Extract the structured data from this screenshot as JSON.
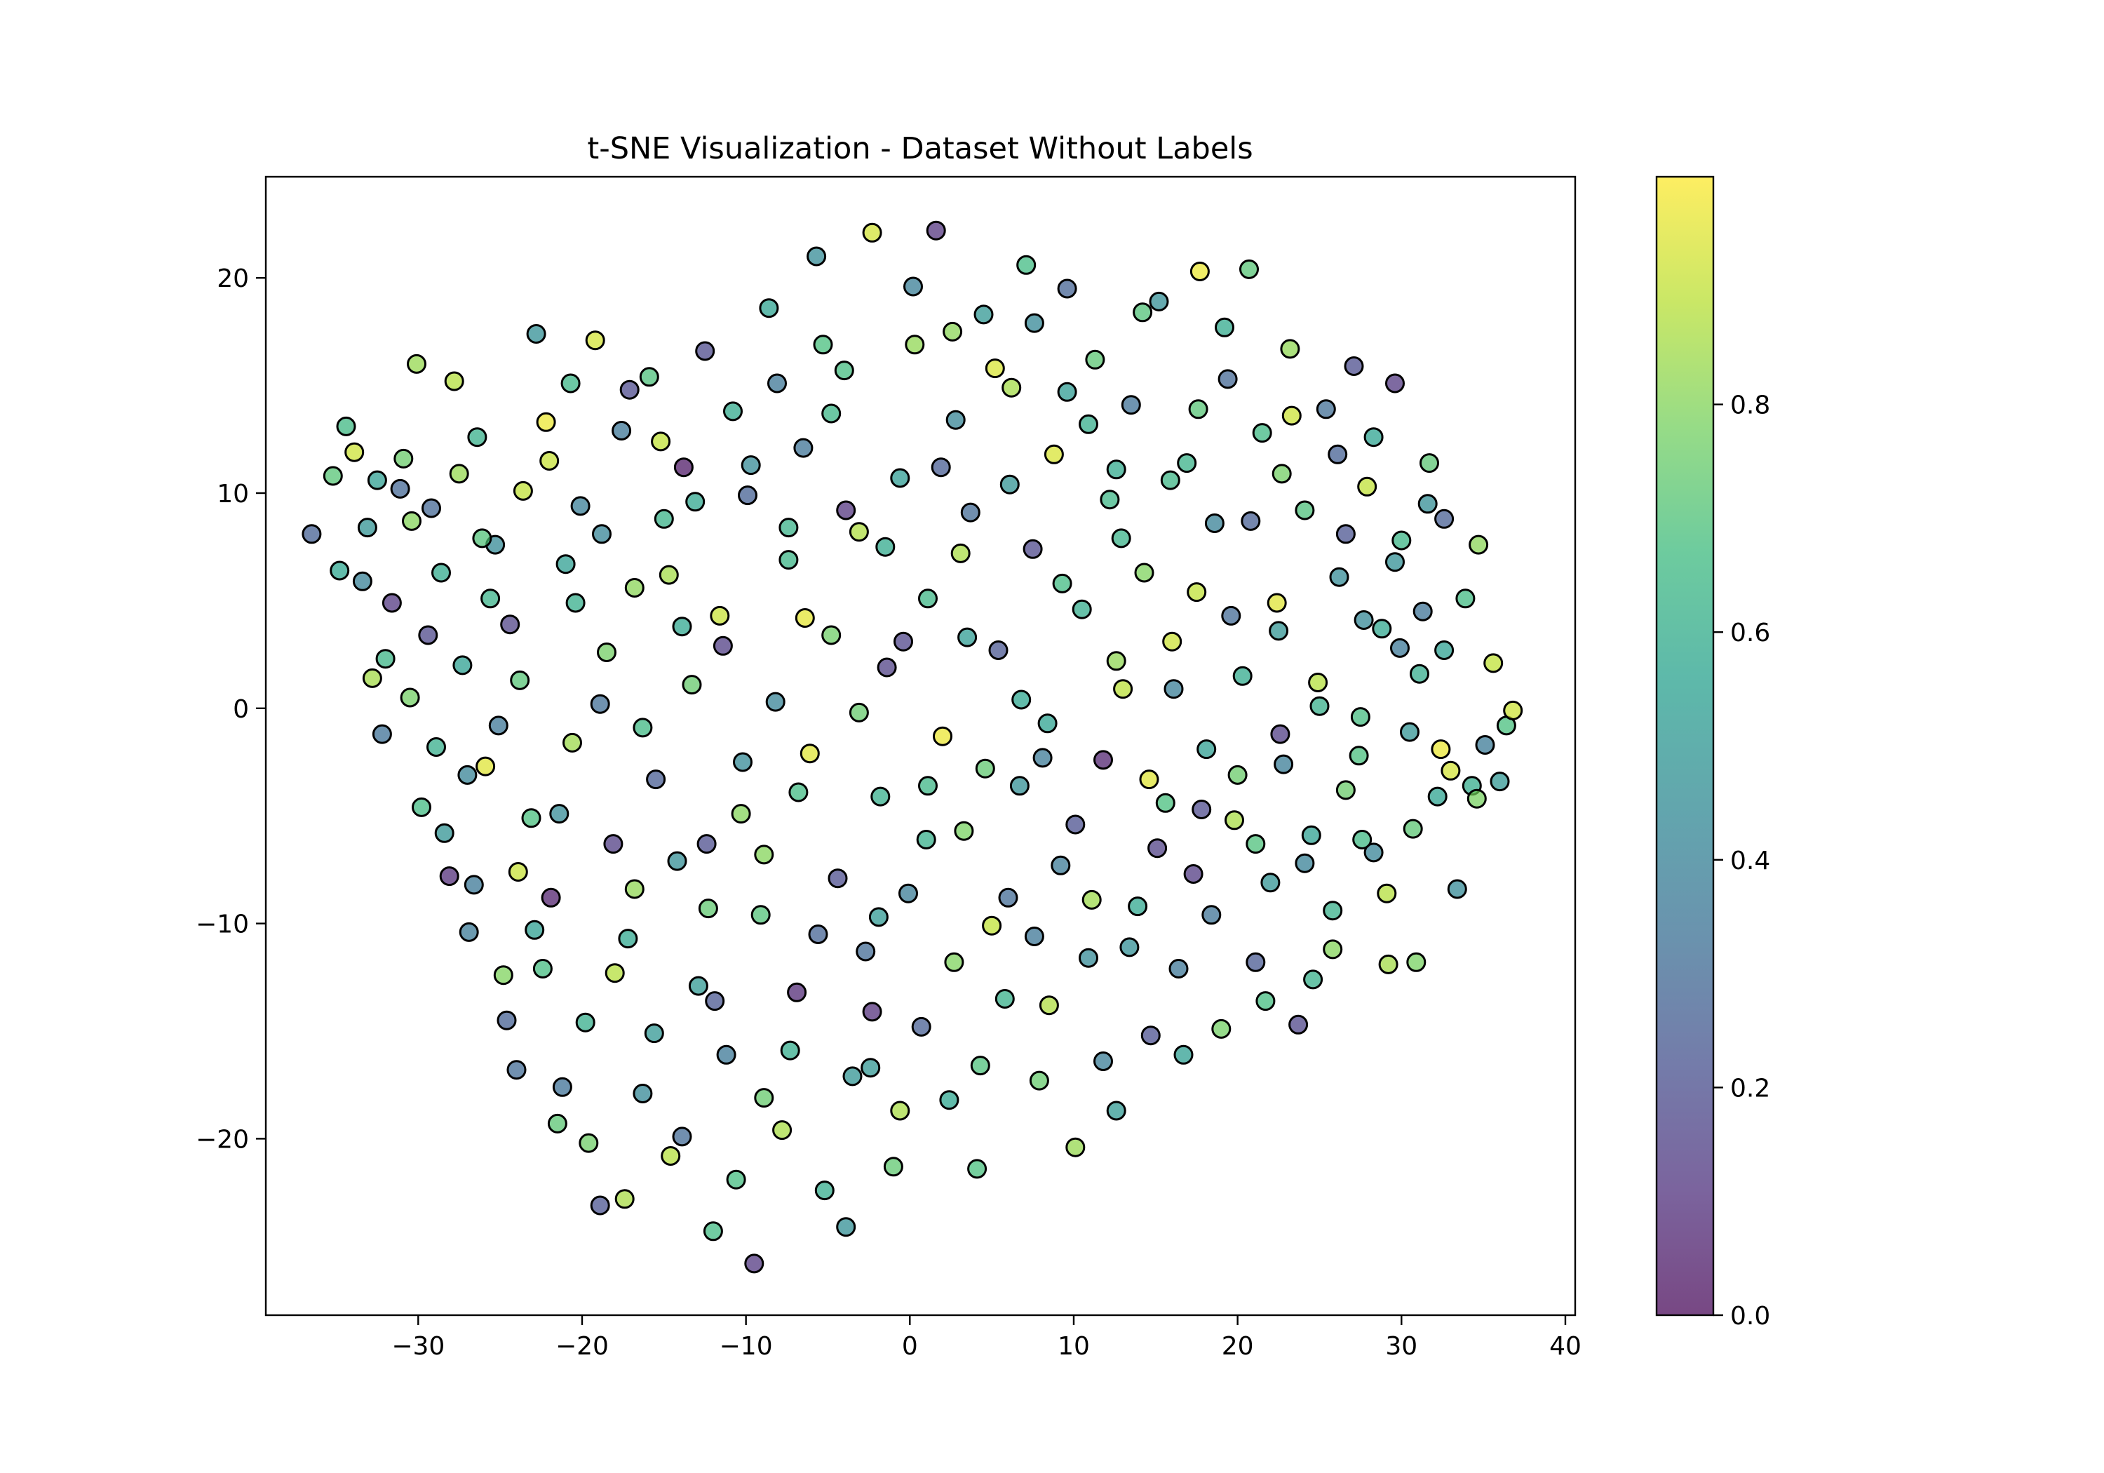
{
  "chart_data": {
    "type": "scatter",
    "title": "t-SNE Visualization - Dataset Without Labels",
    "xlabel": "",
    "ylabel": "",
    "xlim": [
      -39.3,
      40.6
    ],
    "ylim": [
      -28.2,
      24.7
    ],
    "xticks": [
      -30,
      -20,
      -10,
      0,
      10,
      20,
      30,
      40
    ],
    "yticks": [
      -20,
      -10,
      0,
      10,
      20
    ],
    "xtick_labels": [
      "−30",
      "−20",
      "−10",
      "0",
      "10",
      "20",
      "30",
      "40"
    ],
    "ytick_labels": [
      "−20",
      "−10",
      "0",
      "10",
      "20"
    ],
    "grid": false,
    "legend": "none",
    "colormap": "viridis",
    "marker_alpha": 0.7,
    "marker_edge_color": "#000000",
    "colorbar": {
      "range": [
        0.0,
        1.0
      ],
      "ticks": [
        0.0,
        0.2,
        0.4,
        0.6,
        0.8
      ],
      "tick_labels": [
        "0.0",
        "0.2",
        "0.4",
        "0.6",
        "0.8"
      ]
    },
    "colors": {
      "viridis_stops": [
        "#440154",
        "#482878",
        "#3e4989",
        "#31688e",
        "#26828e",
        "#1f9e89",
        "#35b779",
        "#6ece58",
        "#b5de2b",
        "#fde725"
      ]
    },
    "points": [
      [
        -36.5,
        8.1,
        0.27
      ],
      [
        -35.2,
        10.8,
        0.71
      ],
      [
        -34.4,
        13.1,
        0.65
      ],
      [
        -33.9,
        11.9,
        0.92
      ],
      [
        -33.1,
        8.4,
        0.48
      ],
      [
        -32.8,
        1.4,
        0.85
      ],
      [
        -32.2,
        -1.2,
        0.33
      ],
      [
        -31.6,
        4.9,
        0.12
      ],
      [
        -30.9,
        11.6,
        0.75
      ],
      [
        -30.1,
        16.0,
        0.83
      ],
      [
        -29.8,
        -4.6,
        0.66
      ],
      [
        -29.2,
        9.3,
        0.29
      ],
      [
        -28.6,
        6.3,
        0.58
      ],
      [
        -28.1,
        -7.8,
        0.09
      ],
      [
        -27.8,
        15.2,
        0.88
      ],
      [
        -27.3,
        2.0,
        0.54
      ],
      [
        -26.9,
        -10.4,
        0.37
      ],
      [
        -26.4,
        12.6,
        0.61
      ],
      [
        -25.9,
        -2.7,
        0.95
      ],
      [
        -25.3,
        7.6,
        0.44
      ],
      [
        -24.8,
        -12.4,
        0.79
      ],
      [
        -24.4,
        3.9,
        0.16
      ],
      [
        -24.0,
        -16.8,
        0.31
      ],
      [
        -23.6,
        10.1,
        0.9
      ],
      [
        -23.1,
        -5.1,
        0.68
      ],
      [
        -22.8,
        17.4,
        0.47
      ],
      [
        -22.2,
        13.3,
        0.97
      ],
      [
        -21.9,
        -8.8,
        0.05
      ],
      [
        -21.5,
        -19.3,
        0.72
      ],
      [
        -21.0,
        6.7,
        0.53
      ],
      [
        -20.6,
        -1.6,
        0.84
      ],
      [
        -20.1,
        9.4,
        0.39
      ],
      [
        -19.8,
        -14.6,
        0.6
      ],
      [
        -19.2,
        17.1,
        0.93
      ],
      [
        -18.9,
        -23.1,
        0.22
      ],
      [
        -18.5,
        2.6,
        0.77
      ],
      [
        -18.1,
        -6.3,
        0.14
      ],
      [
        -17.6,
        12.9,
        0.35
      ],
      [
        -17.2,
        -10.7,
        0.57
      ],
      [
        -16.8,
        5.6,
        0.81
      ],
      [
        -16.3,
        -17.9,
        0.43
      ],
      [
        -15.9,
        15.4,
        0.69
      ],
      [
        -15.5,
        -3.3,
        0.25
      ],
      [
        -15.0,
        8.8,
        0.62
      ],
      [
        -14.6,
        -20.8,
        0.88
      ],
      [
        -14.2,
        -7.1,
        0.46
      ],
      [
        -13.8,
        11.2,
        0.03
      ],
      [
        -13.3,
        1.1,
        0.74
      ],
      [
        -12.9,
        -12.9,
        0.51
      ],
      [
        -12.5,
        16.6,
        0.19
      ],
      [
        -12.0,
        -24.3,
        0.66
      ],
      [
        -11.6,
        4.3,
        0.91
      ],
      [
        -11.2,
        -16.1,
        0.36
      ],
      [
        -10.8,
        13.8,
        0.58
      ],
      [
        -10.3,
        -4.9,
        0.8
      ],
      [
        -9.9,
        9.9,
        0.27
      ],
      [
        -9.5,
        -25.8,
        0.12
      ],
      [
        -9.1,
        -9.6,
        0.7
      ],
      [
        -8.6,
        18.6,
        0.55
      ],
      [
        -8.2,
        0.3,
        0.41
      ],
      [
        -7.8,
        -19.6,
        0.86
      ],
      [
        -7.4,
        6.9,
        0.63
      ],
      [
        -6.9,
        -13.2,
        0.08
      ],
      [
        -6.5,
        12.1,
        0.34
      ],
      [
        -6.1,
        -2.1,
        0.95
      ],
      [
        -5.7,
        21.0,
        0.45
      ],
      [
        -5.2,
        -22.4,
        0.59
      ],
      [
        -4.8,
        3.4,
        0.76
      ],
      [
        -4.4,
        -7.9,
        0.2
      ],
      [
        -4.0,
        15.7,
        0.67
      ],
      [
        -3.5,
        -17.1,
        0.49
      ],
      [
        -3.1,
        8.2,
        0.87
      ],
      [
        -2.7,
        -11.3,
        0.31
      ],
      [
        -2.3,
        22.1,
        0.93
      ],
      [
        -1.8,
        -4.1,
        0.6
      ],
      [
        -1.4,
        1.9,
        0.15
      ],
      [
        -1.0,
        -21.3,
        0.73
      ],
      [
        -0.6,
        10.7,
        0.52
      ],
      [
        -0.1,
        -8.6,
        0.38
      ],
      [
        0.3,
        16.9,
        0.82
      ],
      [
        0.7,
        -14.8,
        0.26
      ],
      [
        1.1,
        5.1,
        0.64
      ],
      [
        1.6,
        22.2,
        0.11
      ],
      [
        2.0,
        -1.3,
        0.97
      ],
      [
        2.4,
        -18.2,
        0.56
      ],
      [
        2.8,
        13.4,
        0.42
      ],
      [
        3.3,
        -5.7,
        0.78
      ],
      [
        3.7,
        9.1,
        0.3
      ],
      [
        4.1,
        -21.4,
        0.68
      ],
      [
        4.5,
        18.3,
        0.5
      ],
      [
        5.0,
        -10.1,
        0.9
      ],
      [
        5.4,
        2.7,
        0.23
      ],
      [
        5.8,
        -13.5,
        0.61
      ],
      [
        6.2,
        14.9,
        0.85
      ],
      [
        6.7,
        -3.6,
        0.47
      ],
      [
        7.1,
        20.6,
        0.66
      ],
      [
        7.5,
        7.4,
        0.18
      ],
      [
        7.9,
        -17.3,
        0.74
      ],
      [
        8.4,
        -0.7,
        0.55
      ],
      [
        8.8,
        11.8,
        0.94
      ],
      [
        9.2,
        -7.3,
        0.37
      ],
      [
        9.6,
        19.5,
        0.28
      ],
      [
        10.1,
        -20.4,
        0.83
      ],
      [
        10.5,
        4.6,
        0.59
      ],
      [
        10.9,
        -11.6,
        0.44
      ],
      [
        11.3,
        16.2,
        0.72
      ],
      [
        11.8,
        -2.4,
        0.06
      ],
      [
        12.2,
        9.7,
        0.64
      ],
      [
        12.6,
        -18.7,
        0.51
      ],
      [
        13.0,
        0.9,
        0.89
      ],
      [
        13.5,
        14.1,
        0.33
      ],
      [
        13.9,
        -9.2,
        0.57
      ],
      [
        14.3,
        6.3,
        0.79
      ],
      [
        14.7,
        -15.2,
        0.21
      ],
      [
        15.2,
        18.9,
        0.46
      ],
      [
        15.6,
        -4.4,
        0.68
      ],
      [
        16.0,
        3.1,
        0.92
      ],
      [
        16.4,
        -12.1,
        0.35
      ],
      [
        16.9,
        11.4,
        0.62
      ],
      [
        17.3,
        -7.7,
        0.13
      ],
      [
        17.7,
        20.3,
        0.97
      ],
      [
        18.1,
        -1.9,
        0.53
      ],
      [
        18.6,
        8.6,
        0.4
      ],
      [
        19.0,
        -14.9,
        0.77
      ],
      [
        19.4,
        15.3,
        0.29
      ],
      [
        19.8,
        -5.2,
        0.86
      ],
      [
        20.3,
        1.5,
        0.58
      ],
      [
        20.7,
        20.4,
        0.71
      ],
      [
        21.1,
        -11.8,
        0.24
      ],
      [
        21.5,
        12.8,
        0.65
      ],
      [
        22.0,
        -8.1,
        0.48
      ],
      [
        22.4,
        4.9,
        0.95
      ],
      [
        22.8,
        -2.6,
        0.38
      ],
      [
        23.2,
        16.7,
        0.82
      ],
      [
        23.7,
        -14.7,
        0.17
      ],
      [
        24.1,
        9.2,
        0.69
      ],
      [
        24.5,
        -5.9,
        0.54
      ],
      [
        24.9,
        1.2,
        0.88
      ],
      [
        25.4,
        13.9,
        0.32
      ],
      [
        25.8,
        -9.4,
        0.61
      ],
      [
        26.2,
        6.1,
        0.45
      ],
      [
        26.6,
        -3.8,
        0.75
      ],
      [
        27.1,
        15.9,
        0.2
      ],
      [
        27.5,
        -0.4,
        0.67
      ],
      [
        27.9,
        10.3,
        0.9
      ],
      [
        28.3,
        -6.7,
        0.41
      ],
      [
        28.8,
        3.7,
        0.57
      ],
      [
        29.2,
        -11.9,
        0.85
      ],
      [
        29.6,
        15.1,
        0.12
      ],
      [
        30.0,
        7.8,
        0.63
      ],
      [
        30.5,
        -1.1,
        0.49
      ],
      [
        30.9,
        -11.8,
        0.78
      ],
      [
        31.3,
        4.5,
        0.34
      ],
      [
        31.7,
        11.4,
        0.72
      ],
      [
        32.2,
        -4.1,
        0.55
      ],
      [
        32.6,
        8.8,
        0.26
      ],
      [
        33.0,
        -2.9,
        0.93
      ],
      [
        33.4,
        -8.4,
        0.44
      ],
      [
        33.9,
        5.1,
        0.66
      ],
      [
        34.3,
        -3.6,
        0.59
      ],
      [
        34.7,
        7.6,
        0.81
      ],
      [
        35.1,
        -1.7,
        0.37
      ],
      [
        35.6,
        2.1,
        0.9
      ],
      [
        36.0,
        -3.4,
        0.5
      ],
      [
        36.4,
        -0.8,
        0.68
      ],
      [
        36.8,
        -0.1,
        0.92
      ],
      [
        -34.8,
        6.4,
        0.56
      ],
      [
        -33.4,
        5.9,
        0.4
      ],
      [
        -32.0,
        2.3,
        0.63
      ],
      [
        -30.5,
        0.5,
        0.77
      ],
      [
        -29.4,
        3.4,
        0.18
      ],
      [
        -28.4,
        -5.8,
        0.48
      ],
      [
        -27.5,
        10.9,
        0.83
      ],
      [
        -26.6,
        -8.2,
        0.36
      ],
      [
        -25.6,
        5.1,
        0.62
      ],
      [
        -24.6,
        -14.5,
        0.27
      ],
      [
        -23.8,
        1.3,
        0.71
      ],
      [
        -22.9,
        -10.3,
        0.54
      ],
      [
        -22.0,
        11.5,
        0.91
      ],
      [
        -21.2,
        -17.6,
        0.33
      ],
      [
        -20.4,
        4.9,
        0.6
      ],
      [
        -19.6,
        -20.2,
        0.76
      ],
      [
        -18.8,
        8.1,
        0.42
      ],
      [
        -18.0,
        -12.3,
        0.88
      ],
      [
        -17.1,
        14.8,
        0.19
      ],
      [
        -16.3,
        -0.9,
        0.65
      ],
      [
        -15.6,
        -15.1,
        0.5
      ],
      [
        -14.7,
        6.2,
        0.85
      ],
      [
        -13.9,
        -19.9,
        0.3
      ],
      [
        -13.1,
        9.6,
        0.57
      ],
      [
        -12.3,
        -9.3,
        0.73
      ],
      [
        -11.4,
        2.9,
        0.14
      ],
      [
        -10.6,
        -21.9,
        0.67
      ],
      [
        -9.7,
        11.3,
        0.44
      ],
      [
        -8.9,
        -6.8,
        0.8
      ],
      [
        -8.1,
        15.1,
        0.35
      ],
      [
        -7.3,
        -15.9,
        0.59
      ],
      [
        -6.4,
        4.2,
        0.96
      ],
      [
        -5.6,
        -10.5,
        0.28
      ],
      [
        -4.8,
        13.7,
        0.63
      ],
      [
        -3.9,
        -24.1,
        0.47
      ],
      [
        -3.1,
        -0.2,
        0.74
      ],
      [
        -2.3,
        -14.1,
        0.1
      ],
      [
        -1.5,
        7.5,
        0.58
      ],
      [
        -0.6,
        -18.7,
        0.86
      ],
      [
        0.2,
        19.6,
        0.39
      ],
      [
        1.0,
        -6.1,
        0.61
      ],
      [
        1.9,
        11.2,
        0.25
      ],
      [
        2.7,
        -11.8,
        0.79
      ],
      [
        3.5,
        3.3,
        0.52
      ],
      [
        4.3,
        -16.6,
        0.69
      ],
      [
        5.2,
        15.8,
        0.94
      ],
      [
        6.0,
        -8.8,
        0.31
      ],
      [
        6.8,
        0.4,
        0.56
      ],
      [
        7.6,
        17.9,
        0.43
      ],
      [
        8.5,
        -13.8,
        0.87
      ],
      [
        9.3,
        5.8,
        0.66
      ],
      [
        10.1,
        -5.4,
        0.21
      ],
      [
        10.9,
        13.2,
        0.6
      ],
      [
        11.8,
        -16.4,
        0.38
      ],
      [
        12.6,
        2.2,
        0.82
      ],
      [
        13.4,
        -11.1,
        0.47
      ],
      [
        14.2,
        18.4,
        0.7
      ],
      [
        15.1,
        -6.5,
        0.15
      ],
      [
        15.9,
        10.6,
        0.64
      ],
      [
        16.7,
        -16.1,
        0.53
      ],
      [
        17.5,
        5.4,
        0.9
      ],
      [
        18.4,
        -9.6,
        0.34
      ],
      [
        19.2,
        17.7,
        0.58
      ],
      [
        20.0,
        -3.1,
        0.75
      ],
      [
        20.8,
        8.7,
        0.26
      ],
      [
        21.7,
        -13.6,
        0.67
      ],
      [
        22.5,
        3.6,
        0.49
      ],
      [
        23.3,
        13.6,
        0.92
      ],
      [
        24.1,
        -7.2,
        0.4
      ],
      [
        25.0,
        0.1,
        0.61
      ],
      [
        25.8,
        -11.2,
        0.8
      ],
      [
        26.6,
        8.1,
        0.22
      ],
      [
        27.4,
        -2.2,
        0.68
      ],
      [
        28.3,
        12.6,
        0.55
      ],
      [
        29.1,
        -8.6,
        0.88
      ],
      [
        29.9,
        2.8,
        0.36
      ],
      [
        30.7,
        -5.6,
        0.72
      ],
      [
        31.6,
        9.5,
        0.46
      ],
      [
        32.4,
        -1.9,
        0.97
      ],
      [
        -31.1,
        10.2,
        0.29
      ],
      [
        -26.1,
        7.9,
        0.7
      ],
      [
        -21.4,
        -4.9,
        0.45
      ],
      [
        -16.8,
        -8.4,
        0.82
      ],
      [
        -11.9,
        -13.6,
        0.23
      ],
      [
        -6.8,
        -3.9,
        0.66
      ],
      [
        -1.9,
        -9.7,
        0.51
      ],
      [
        3.1,
        7.2,
        0.86
      ],
      [
        8.1,
        -2.3,
        0.37
      ],
      [
        12.9,
        7.9,
        0.62
      ],
      [
        17.8,
        -4.7,
        0.19
      ],
      [
        22.7,
        10.9,
        0.77
      ],
      [
        27.7,
        4.1,
        0.43
      ],
      [
        -28.9,
        -1.8,
        0.6
      ],
      [
        -23.9,
        -7.6,
        0.91
      ],
      [
        -18.9,
        0.2,
        0.32
      ],
      [
        -13.9,
        3.8,
        0.57
      ],
      [
        -8.9,
        -18.1,
        0.74
      ],
      [
        -3.9,
        9.2,
        0.11
      ],
      [
        1.1,
        -3.6,
        0.64
      ],
      [
        6.1,
        10.4,
        0.48
      ],
      [
        11.1,
        -8.9,
        0.84
      ],
      [
        16.1,
        0.9,
        0.39
      ],
      [
        21.1,
        -6.3,
        0.69
      ],
      [
        26.1,
        11.8,
        0.27
      ],
      [
        31.1,
        1.6,
        0.59
      ],
      [
        -30.4,
        8.7,
        0.8
      ],
      [
        -25.1,
        -0.8,
        0.35
      ],
      [
        -20.7,
        15.1,
        0.63
      ],
      [
        -15.2,
        12.4,
        0.9
      ],
      [
        -10.2,
        -2.5,
        0.44
      ],
      [
        -5.3,
        16.9,
        0.68
      ],
      [
        -0.4,
        3.1,
        0.17
      ],
      [
        4.6,
        -2.8,
        0.73
      ],
      [
        9.6,
        14.7,
        0.52
      ],
      [
        14.6,
        -3.3,
        0.95
      ],
      [
        19.6,
        4.3,
        0.3
      ],
      [
        24.6,
        -12.6,
        0.61
      ],
      [
        29.6,
        6.8,
        0.47
      ],
      [
        34.6,
        -4.2,
        0.78
      ],
      [
        -32.5,
        10.6,
        0.53
      ],
      [
        -27.0,
        -3.1,
        0.41
      ],
      [
        -22.4,
        -12.1,
        0.67
      ],
      [
        -17.4,
        -22.8,
        0.86
      ],
      [
        -12.4,
        -6.3,
        0.2
      ],
      [
        -7.4,
        8.4,
        0.62
      ],
      [
        -2.4,
        -16.7,
        0.5
      ],
      [
        2.6,
        17.5,
        0.81
      ],
      [
        7.6,
        -10.6,
        0.35
      ],
      [
        12.6,
        11.1,
        0.58
      ],
      [
        17.6,
        13.9,
        0.71
      ],
      [
        22.6,
        -1.2,
        0.14
      ],
      [
        27.6,
        -6.1,
        0.65
      ],
      [
        32.6,
        2.7,
        0.54
      ]
    ]
  }
}
